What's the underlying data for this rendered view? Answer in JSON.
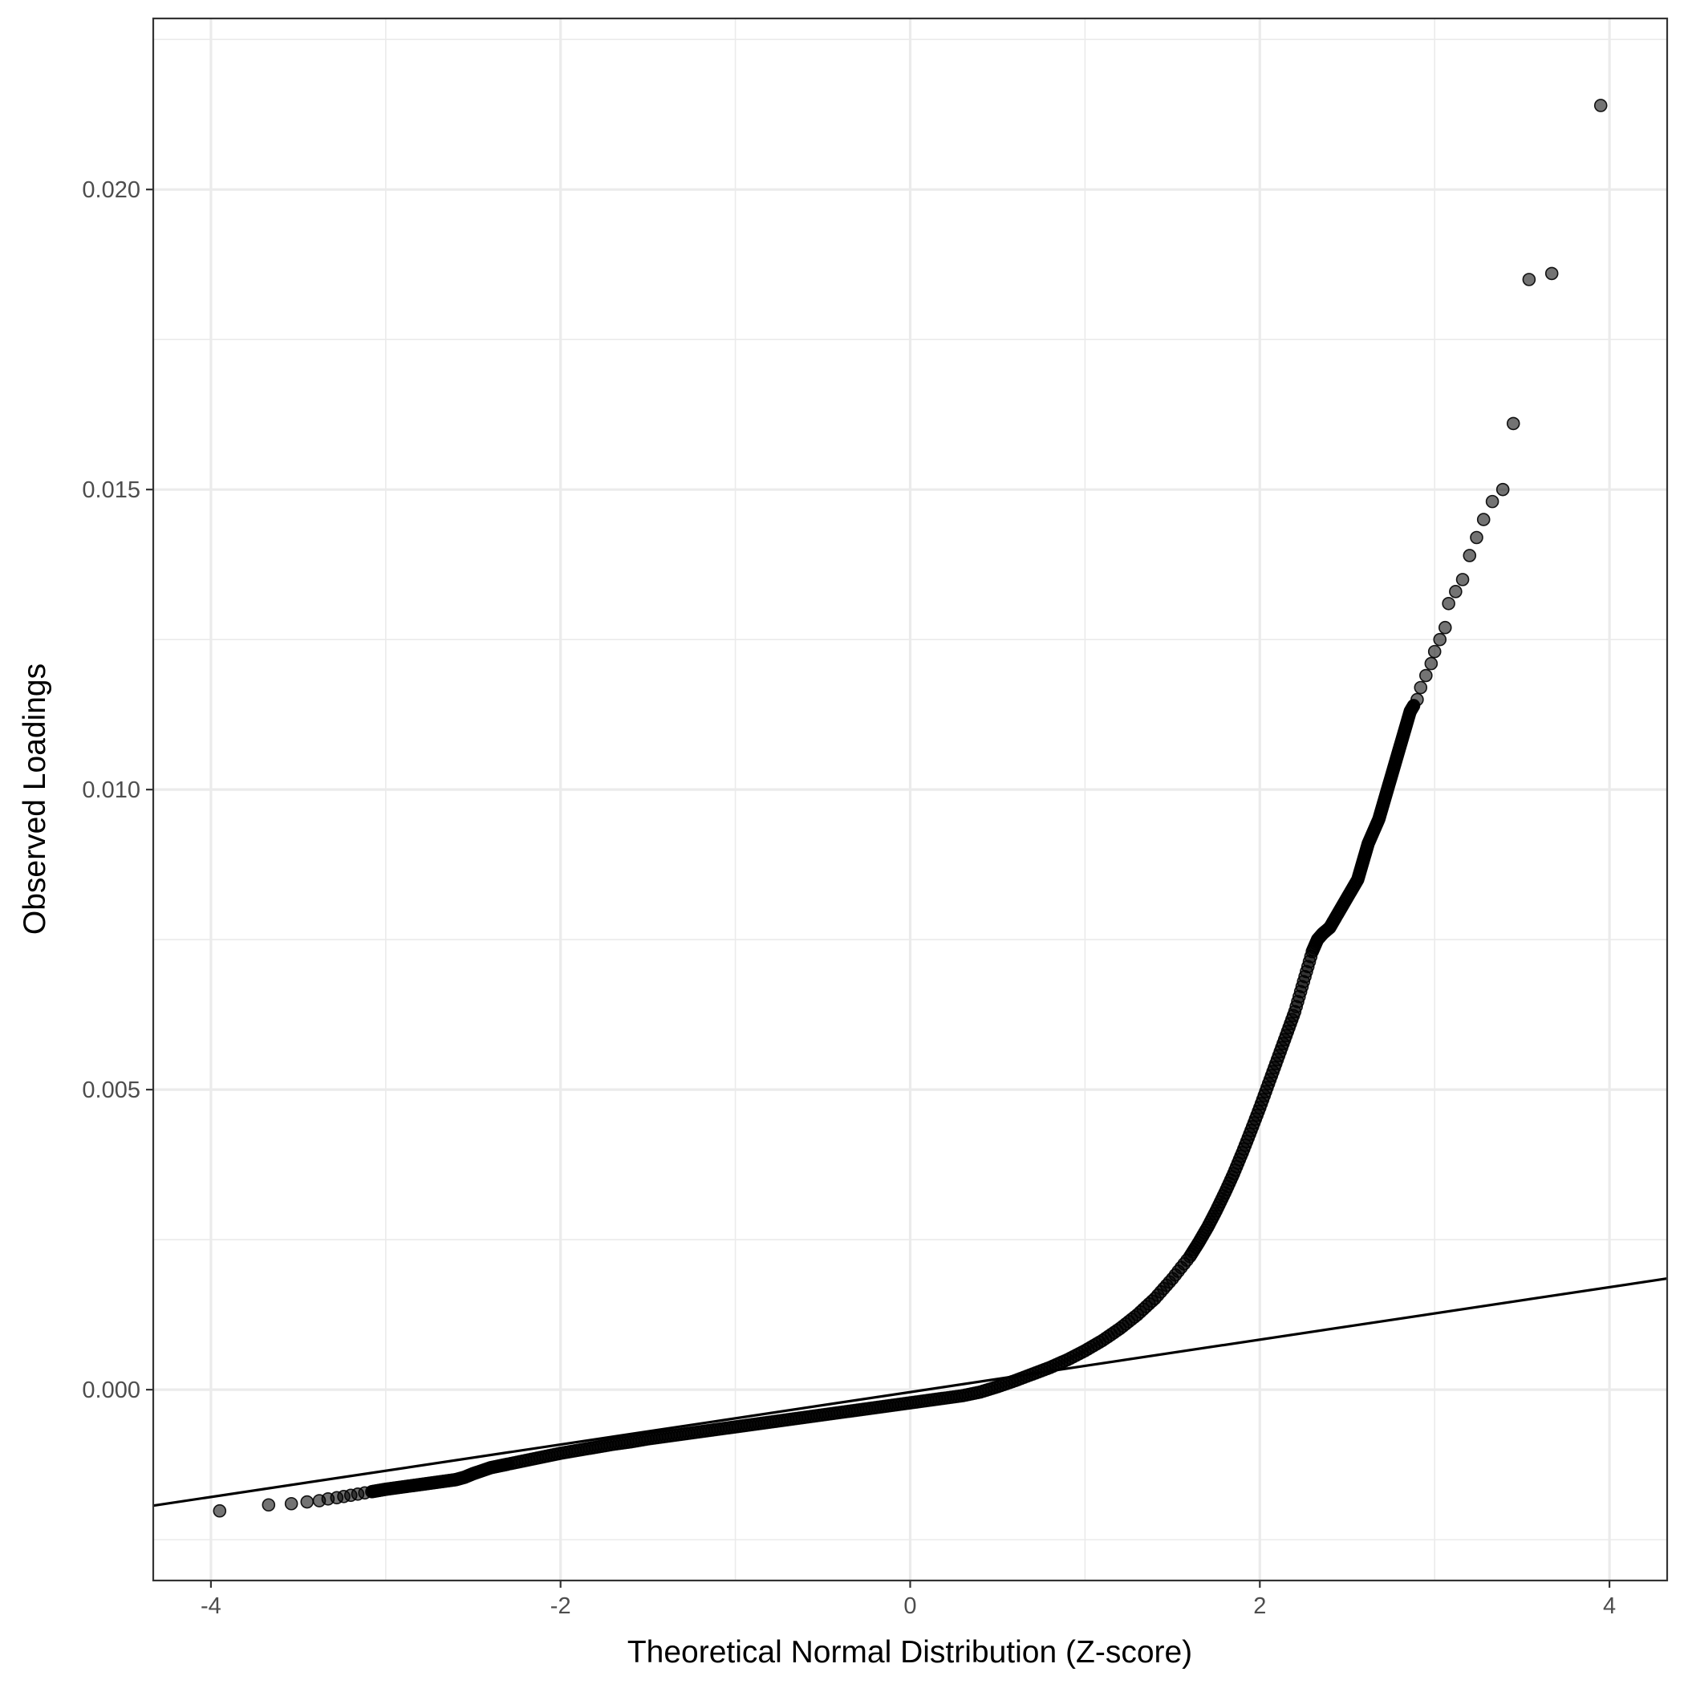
{
  "chart_data": {
    "type": "scatter",
    "title": "",
    "xlabel": "Theoretical Normal Distribution (Z-score)",
    "ylabel": "Observed Loadings",
    "xlim": [
      -4.33,
      4.33
    ],
    "ylim": [
      -0.00318,
      0.02285
    ],
    "x_ticks": [
      -4,
      -2,
      0,
      2,
      4
    ],
    "x_tick_labels": [
      "-4",
      "-2",
      "0",
      "2",
      "4"
    ],
    "y_ticks": [
      0.0,
      0.005,
      0.01,
      0.015,
      0.02
    ],
    "y_tick_labels": [
      "0.000",
      "0.005",
      "0.010",
      "0.015",
      "0.020"
    ],
    "grid": true,
    "reference_line": {
      "intercept": -4e-05,
      "slope": 0.000437
    },
    "series": [
      {
        "x": [
          -3.95,
          -3.67,
          -3.54,
          -3.45,
          -3.38,
          -3.33,
          -3.28,
          -3.24,
          -3.2,
          -3.16,
          -3.12,
          -3.08,
          -3.04,
          -3.0,
          -2.95,
          -2.9,
          -2.85,
          -2.8,
          -2.75,
          -2.7,
          -2.65,
          -2.6,
          -2.55,
          -2.5,
          -2.45,
          -2.4,
          -2.35,
          -2.3,
          -2.2,
          -2.1,
          -2.0,
          -1.9,
          -1.8,
          -1.7,
          -1.6,
          -1.5,
          -1.4,
          -1.3,
          -1.2,
          -1.1,
          -1.0,
          -0.9,
          -0.8,
          -0.7,
          -0.6,
          -0.5,
          -0.4,
          -0.3,
          -0.2,
          -0.1,
          0.0,
          0.1,
          0.2,
          0.3,
          0.4,
          0.5,
          0.6,
          0.7,
          0.8,
          0.9,
          1.0,
          1.1,
          1.2,
          1.3,
          1.4,
          1.5,
          1.6,
          1.65,
          1.7,
          1.75,
          1.8,
          1.85,
          1.9,
          1.95,
          2.0,
          2.05,
          2.1,
          2.15,
          2.2,
          2.25,
          2.3,
          2.33,
          2.36,
          2.4,
          2.44,
          2.48,
          2.52,
          2.56,
          2.58,
          2.6,
          2.62,
          2.65,
          2.68,
          2.7,
          2.72,
          2.74,
          2.76,
          2.78,
          2.8,
          2.82,
          2.84,
          2.86,
          2.88,
          2.9,
          2.92,
          2.95,
          2.98,
          3.0,
          3.03,
          3.06,
          3.08,
          3.12,
          3.16,
          3.2,
          3.24,
          3.28,
          3.33,
          3.39,
          3.45,
          3.54,
          3.67,
          3.95
        ],
        "y": [
          -0.00202,
          -0.00192,
          -0.0019,
          -0.00187,
          -0.00185,
          -0.00182,
          -0.0018,
          -0.00178,
          -0.00176,
          -0.00174,
          -0.00172,
          -0.0017,
          -0.00168,
          -0.00166,
          -0.00164,
          -0.00162,
          -0.0016,
          -0.00158,
          -0.00156,
          -0.00154,
          -0.00152,
          -0.0015,
          -0.00146,
          -0.0014,
          -0.00135,
          -0.0013,
          -0.00127,
          -0.00124,
          -0.00118,
          -0.00112,
          -0.00106,
          -0.00101,
          -0.00096,
          -0.00091,
          -0.00087,
          -0.00082,
          -0.00078,
          -0.00074,
          -0.0007,
          -0.00066,
          -0.00062,
          -0.00058,
          -0.00054,
          -0.0005,
          -0.00046,
          -0.00042,
          -0.00038,
          -0.00034,
          -0.0003,
          -0.00026,
          -0.00022,
          -0.00018,
          -0.00014,
          -0.0001,
          -4e-05,
          5e-05,
          0.00015,
          0.00026,
          0.00037,
          0.0005,
          0.00065,
          0.00082,
          0.00102,
          0.00125,
          0.00152,
          0.00185,
          0.00222,
          0.00245,
          0.0027,
          0.00298,
          0.00328,
          0.0036,
          0.00395,
          0.00432,
          0.0047,
          0.0051,
          0.0055,
          0.0059,
          0.0063,
          0.0068,
          0.0073,
          0.0075,
          0.0076,
          0.0077,
          0.0079,
          0.0081,
          0.0083,
          0.0085,
          0.0087,
          0.0089,
          0.0091,
          0.0093,
          0.0095,
          0.0097,
          0.0099,
          0.0101,
          0.0103,
          0.0105,
          0.0107,
          0.0109,
          0.0111,
          0.0113,
          0.0114,
          0.0115,
          0.0117,
          0.0119,
          0.0121,
          0.0123,
          0.0125,
          0.0127,
          0.0131,
          0.0133,
          0.0135,
          0.0139,
          0.0142,
          0.0145,
          0.0148,
          0.015,
          0.0161,
          0.0185,
          0.0186,
          0.0214
        ]
      }
    ]
  }
}
